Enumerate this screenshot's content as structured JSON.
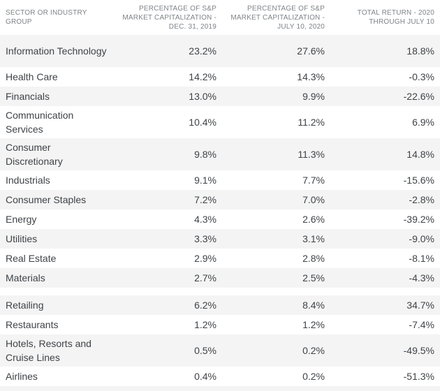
{
  "colors": {
    "row_stripe": "#f4f4f4",
    "background": "#ffffff",
    "body_text": "#3f4347",
    "header_text": "#7e8387"
  },
  "table": {
    "headers": {
      "sector": "SECTOR OR INDUSTRY\nGROUP",
      "dec2019": "PERCENTAGE OF S&P\nMARKET CAPITALIZATION -\nDEC. 31, 2019",
      "jul2020": "PERCENTAGE OF S&P\nMARKET CAPITALIZATION -\nJULY 10, 2020",
      "total_return": "TOTAL RETURN - 2020\nTHROUGH JULY 10"
    },
    "rows": [
      {
        "sector": "Information Technology",
        "dec2019": "23.2%",
        "jul2020": "27.6%",
        "total_return": "18.8%"
      },
      {
        "sector": "Health Care",
        "dec2019": "14.2%",
        "jul2020": "14.3%",
        "total_return": "-0.3%"
      },
      {
        "sector": "Financials",
        "dec2019": "13.0%",
        "jul2020": "9.9%",
        "total_return": "-22.6%"
      },
      {
        "sector": "Communication Services",
        "dec2019": "10.4%",
        "jul2020": "11.2%",
        "total_return": "6.9%"
      },
      {
        "sector": "Consumer Discretionary",
        "dec2019": "9.8%",
        "jul2020": "11.3%",
        "total_return": "14.8%"
      },
      {
        "sector": "Industrials",
        "dec2019": "9.1%",
        "jul2020": "7.7%",
        "total_return": "-15.6%"
      },
      {
        "sector": "Consumer Staples",
        "dec2019": "7.2%",
        "jul2020": "7.0%",
        "total_return": "-2.8%"
      },
      {
        "sector": "Energy",
        "dec2019": "4.3%",
        "jul2020": "2.6%",
        "total_return": "-39.2%"
      },
      {
        "sector": "Utilities",
        "dec2019": "3.3%",
        "jul2020": "3.1%",
        "total_return": "-9.0%"
      },
      {
        "sector": "Real Estate",
        "dec2019": "2.9%",
        "jul2020": "2.8%",
        "total_return": "-8.1%"
      },
      {
        "sector": "Materials",
        "dec2019": "2.7%",
        "jul2020": "2.5%",
        "total_return": "-4.3%"
      },
      {
        "sector": "Retailing",
        "dec2019": "6.2%",
        "jul2020": "8.4%",
        "total_return": "34.7%"
      },
      {
        "sector": "Restaurants",
        "dec2019": "1.2%",
        "jul2020": "1.2%",
        "total_return": "-7.4%"
      },
      {
        "sector": "Hotels, Resorts and Cruise Lines",
        "dec2019": "0.5%",
        "jul2020": "0.2%",
        "total_return": "-49.5%"
      },
      {
        "sector": "Airlines",
        "dec2019": "0.4%",
        "jul2020": "0.2%",
        "total_return": "-51.3%"
      }
    ]
  },
  "chart_data": {
    "type": "table",
    "title": "",
    "columns": [
      "Sector or Industry Group",
      "Percentage of S&P Market Capitalization - Dec. 31, 2019",
      "Percentage of S&P Market Capitalization - July 10, 2020",
      "Total Return - 2020 Through July 10"
    ],
    "sections": [
      {
        "name": "sectors",
        "rows": [
          [
            "Information Technology",
            23.2,
            27.6,
            18.8
          ],
          [
            "Health Care",
            14.2,
            14.3,
            -0.3
          ],
          [
            "Financials",
            13.0,
            9.9,
            -22.6
          ],
          [
            "Communication Services",
            10.4,
            11.2,
            6.9
          ],
          [
            "Consumer Discretionary",
            9.8,
            11.3,
            14.8
          ],
          [
            "Industrials",
            9.1,
            7.7,
            -15.6
          ],
          [
            "Consumer Staples",
            7.2,
            7.0,
            -2.8
          ],
          [
            "Energy",
            4.3,
            2.6,
            -39.2
          ],
          [
            "Utilities",
            3.3,
            3.1,
            -9.0
          ],
          [
            "Real Estate",
            2.9,
            2.8,
            -8.1
          ],
          [
            "Materials",
            2.7,
            2.5,
            -4.3
          ]
        ]
      },
      {
        "name": "industry-groups",
        "rows": [
          [
            "Retailing",
            6.2,
            8.4,
            34.7
          ],
          [
            "Restaurants",
            1.2,
            1.2,
            -7.4
          ],
          [
            "Hotels, Resorts and Cruise Lines",
            0.5,
            0.2,
            -49.5
          ],
          [
            "Airlines",
            0.4,
            0.2,
            -51.3
          ]
        ]
      }
    ],
    "units": "percent",
    "notes": "values as displayed include % suffix; negative returns shown with minus sign"
  }
}
